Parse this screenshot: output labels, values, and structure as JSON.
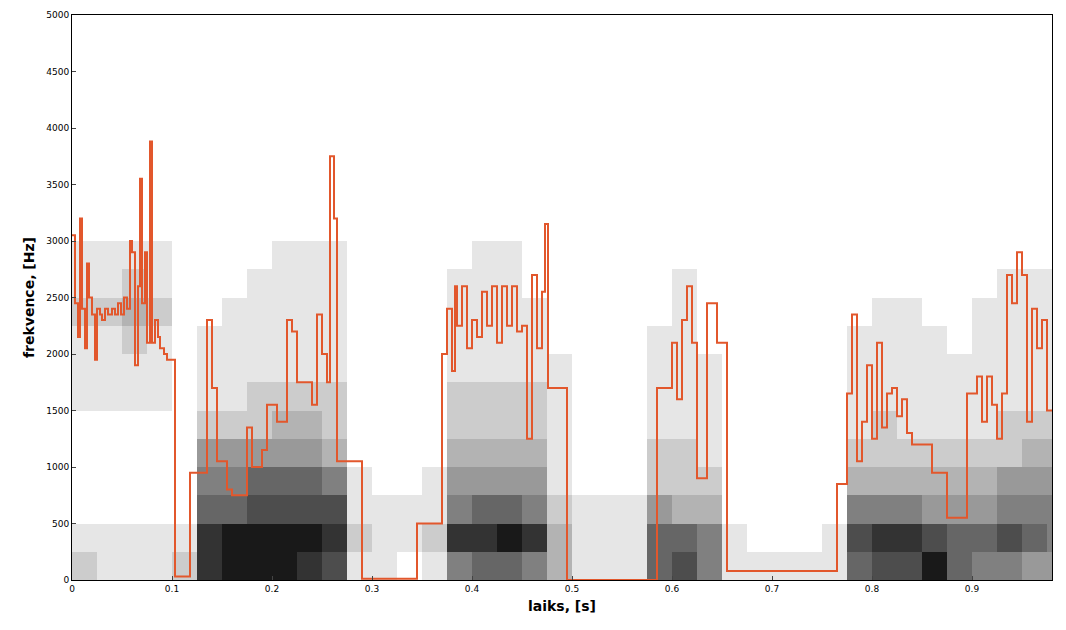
{
  "chart_data": {
    "type": "heatmap",
    "x_label": "laiks, [s]",
    "y_label": "frekvence, [Hz]",
    "xlim": [
      0,
      0.98
    ],
    "ylim": [
      0,
      5000
    ],
    "xticks": [
      0,
      0.1,
      0.2,
      0.3,
      0.4,
      0.5,
      0.6,
      0.7,
      0.8,
      0.9
    ],
    "yticks": [
      0,
      500,
      1000,
      1500,
      2000,
      2500,
      3000,
      3500,
      4000,
      4500,
      5000
    ],
    "grid": false,
    "series": [
      {
        "type": "heatmap",
        "color": "gray",
        "zlim": [
          0,
          10
        ],
        "x": [
          0.0125,
          0.0375,
          0.0625,
          0.0875,
          0.1125,
          0.1375,
          0.1625,
          0.1875,
          0.2125,
          0.2375,
          0.2625,
          0.2875,
          0.3125,
          0.3375,
          0.3625,
          0.3875,
          0.4125,
          0.4375,
          0.4625,
          0.4875,
          0.5125,
          0.5375,
          0.5625,
          0.5875,
          0.6125,
          0.6375,
          0.6625,
          0.6875,
          0.7125,
          0.7375,
          0.7625,
          0.7875,
          0.8125,
          0.8375,
          0.8625,
          0.8875,
          0.9125,
          0.9375,
          0.9625,
          0.9875
        ],
        "y": [
          125,
          375,
          625,
          875,
          1125,
          1375,
          1625,
          1875,
          2125,
          2375,
          2625,
          2875
        ],
        "z": [
          [
            2,
            1,
            1,
            1,
            2,
            8,
            9,
            9,
            9,
            8,
            7,
            1,
            1,
            0,
            1,
            5,
            6,
            6,
            5,
            3,
            1,
            1,
            1,
            6,
            7,
            5,
            1,
            1,
            1,
            1,
            1,
            6,
            7,
            7,
            9,
            6,
            5,
            5,
            4,
            4
          ],
          [
            1,
            1,
            1,
            1,
            1,
            8,
            9,
            9,
            9,
            9,
            8,
            2,
            1,
            1,
            2,
            8,
            8,
            9,
            8,
            3,
            1,
            1,
            1,
            6,
            6,
            5,
            1,
            0,
            0,
            0,
            1,
            7,
            8,
            8,
            7,
            6,
            6,
            7,
            6,
            5
          ],
          [
            0,
            0,
            0,
            0,
            0,
            6,
            6,
            7,
            7,
            7,
            7,
            1,
            1,
            1,
            1,
            5,
            6,
            6,
            5,
            2,
            1,
            1,
            1,
            4,
            3,
            3,
            0,
            0,
            0,
            0,
            0,
            5,
            5,
            5,
            4,
            4,
            4,
            5,
            5,
            5
          ],
          [
            0,
            0,
            0,
            0,
            0,
            5,
            5,
            6,
            6,
            6,
            5,
            1,
            0,
            0,
            1,
            4,
            4,
            4,
            4,
            1,
            0,
            0,
            0,
            2,
            2,
            2,
            0,
            0,
            0,
            0,
            0,
            3,
            3,
            3,
            3,
            3,
            3,
            4,
            4,
            4
          ],
          [
            0,
            0,
            0,
            0,
            0,
            4,
            4,
            4,
            4,
            4,
            3,
            0,
            0,
            0,
            0,
            3,
            3,
            3,
            3,
            1,
            0,
            0,
            0,
            2,
            2,
            1,
            0,
            0,
            0,
            0,
            0,
            2,
            2,
            2,
            2,
            2,
            2,
            2,
            3,
            3
          ],
          [
            0,
            0,
            0,
            0,
            0,
            2,
            2,
            2,
            3,
            3,
            2,
            0,
            0,
            0,
            0,
            2,
            2,
            2,
            2,
            1,
            0,
            0,
            0,
            1,
            1,
            1,
            0,
            0,
            0,
            0,
            0,
            1,
            2,
            1,
            1,
            1,
            1,
            2,
            2,
            2
          ],
          [
            1,
            1,
            1,
            1,
            0,
            1,
            1,
            2,
            2,
            2,
            2,
            0,
            0,
            0,
            0,
            2,
            2,
            2,
            2,
            1,
            0,
            0,
            0,
            1,
            1,
            1,
            0,
            0,
            0,
            0,
            0,
            1,
            1,
            1,
            1,
            1,
            1,
            1,
            1,
            1
          ],
          [
            1,
            1,
            1,
            1,
            0,
            1,
            1,
            1,
            1,
            1,
            1,
            0,
            0,
            0,
            0,
            1,
            1,
            1,
            1,
            1,
            0,
            0,
            0,
            1,
            1,
            1,
            0,
            0,
            0,
            0,
            0,
            1,
            1,
            1,
            1,
            1,
            1,
            1,
            1,
            1
          ],
          [
            1,
            1,
            2,
            1,
            0,
            1,
            1,
            1,
            1,
            1,
            1,
            0,
            0,
            0,
            0,
            1,
            1,
            1,
            1,
            0,
            0,
            0,
            0,
            1,
            1,
            0,
            0,
            0,
            0,
            0,
            0,
            1,
            1,
            1,
            1,
            0,
            1,
            1,
            1,
            1
          ],
          [
            2,
            2,
            3,
            2,
            0,
            0,
            1,
            1,
            1,
            1,
            1,
            0,
            0,
            0,
            0,
            1,
            1,
            1,
            1,
            0,
            0,
            0,
            0,
            0,
            1,
            0,
            0,
            0,
            0,
            0,
            0,
            0,
            1,
            1,
            0,
            0,
            1,
            1,
            1,
            1
          ],
          [
            1,
            1,
            2,
            1,
            0,
            0,
            0,
            1,
            1,
            1,
            1,
            0,
            0,
            0,
            0,
            1,
            1,
            1,
            0,
            0,
            0,
            0,
            0,
            0,
            1,
            0,
            0,
            0,
            0,
            0,
            0,
            0,
            0,
            0,
            0,
            0,
            0,
            1,
            1,
            1
          ],
          [
            1,
            1,
            1,
            1,
            0,
            0,
            0,
            0,
            1,
            1,
            1,
            0,
            0,
            0,
            0,
            0,
            1,
            1,
            0,
            0,
            0,
            0,
            0,
            0,
            0,
            0,
            0,
            0,
            0,
            0,
            0,
            0,
            0,
            0,
            0,
            0,
            0,
            0,
            0,
            0
          ]
        ]
      },
      {
        "type": "line",
        "color": "#e2572c",
        "line_style": "step",
        "x": [
          0,
          0.003,
          0.006,
          0.008,
          0.01,
          0.013,
          0.015,
          0.017,
          0.02,
          0.023,
          0.025,
          0.028,
          0.03,
          0.033,
          0.036,
          0.04,
          0.043,
          0.046,
          0.049,
          0.052,
          0.055,
          0.058,
          0.06,
          0.063,
          0.066,
          0.068,
          0.07,
          0.073,
          0.075,
          0.078,
          0.08,
          0.083,
          0.086,
          0.088,
          0.092,
          0.095,
          0.103,
          0.118,
          0.135,
          0.14,
          0.145,
          0.155,
          0.16,
          0.175,
          0.18,
          0.19,
          0.195,
          0.205,
          0.215,
          0.22,
          0.225,
          0.235,
          0.24,
          0.245,
          0.25,
          0.255,
          0.258,
          0.262,
          0.265,
          0.29,
          0.345,
          0.37,
          0.375,
          0.38,
          0.383,
          0.385,
          0.39,
          0.395,
          0.4,
          0.405,
          0.41,
          0.415,
          0.42,
          0.425,
          0.43,
          0.435,
          0.44,
          0.445,
          0.45,
          0.455,
          0.46,
          0.465,
          0.47,
          0.473,
          0.476,
          0.495,
          0.585,
          0.6,
          0.605,
          0.61,
          0.615,
          0.62,
          0.625,
          0.635,
          0.645,
          0.655,
          0.765,
          0.775,
          0.78,
          0.785,
          0.79,
          0.795,
          0.8,
          0.805,
          0.81,
          0.815,
          0.82,
          0.825,
          0.83,
          0.835,
          0.84,
          0.86,
          0.875,
          0.895,
          0.905,
          0.91,
          0.915,
          0.92,
          0.925,
          0.93,
          0.935,
          0.94,
          0.945,
          0.95,
          0.955,
          0.96,
          0.965,
          0.97,
          0.975,
          0.98
        ],
        "values": [
          3050,
          2450,
          2150,
          3200,
          2400,
          2050,
          2800,
          2500,
          2350,
          1950,
          2400,
          2350,
          2300,
          2400,
          2350,
          2400,
          2350,
          2450,
          2350,
          2500,
          2400,
          3000,
          2900,
          1900,
          2600,
          3550,
          2450,
          2900,
          2100,
          3880,
          2100,
          2300,
          2150,
          2050,
          2000,
          1950,
          30,
          950,
          2300,
          1700,
          1050,
          800,
          750,
          1350,
          1000,
          1150,
          1550,
          1400,
          2300,
          2200,
          1750,
          1750,
          1550,
          2350,
          2000,
          1750,
          3750,
          3200,
          1050,
          10,
          500,
          2000,
          2400,
          1850,
          2600,
          2250,
          2600,
          2050,
          2300,
          2150,
          2550,
          2250,
          2600,
          2100,
          2600,
          2250,
          2600,
          2200,
          2250,
          1250,
          2700,
          2050,
          2550,
          3150,
          1700,
          0,
          1700,
          2100,
          1600,
          2300,
          2600,
          2100,
          900,
          2450,
          2100,
          80,
          850,
          1650,
          2350,
          1050,
          1400,
          1900,
          1250,
          2100,
          1350,
          1650,
          1700,
          1450,
          1600,
          1300,
          1200,
          950,
          550,
          1650,
          1800,
          1400,
          1800,
          1550,
          1250,
          1650,
          2700,
          2450,
          2900,
          2700,
          1400,
          2400,
          2050,
          2300,
          1500,
          1500
        ]
      }
    ]
  }
}
